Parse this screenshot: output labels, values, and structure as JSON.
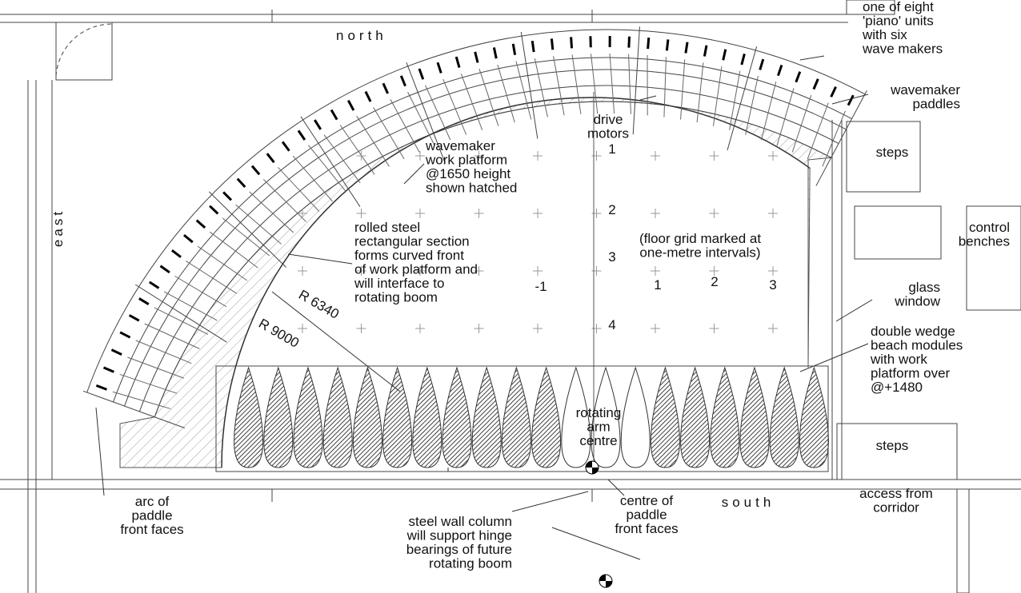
{
  "labels": [
    {
      "lines": [
        "north"
      ]
    },
    {
      "lines": [
        "east"
      ]
    },
    {
      "lines": [
        "south"
      ]
    },
    {
      "lines": [
        "one of eight",
        "'piano' units",
        "with six",
        "wave makers"
      ]
    },
    {
      "lines": [
        "wavemaker",
        "paddles"
      ]
    },
    {
      "lines": [
        "drive",
        "motors"
      ]
    },
    {
      "lines": [
        "steps"
      ]
    },
    {
      "lines": [
        "wavemaker",
        "work platform",
        "@1650 height",
        "shown hatched"
      ]
    },
    {
      "lines": [
        "control",
        "benches"
      ]
    },
    {
      "lines": [
        "rolled steel",
        "rectangular section",
        "forms curved front",
        "of work platform and",
        "will interface to",
        "rotating boom"
      ]
    },
    {
      "lines": [
        "(floor grid marked at",
        "one-metre intervals)"
      ]
    },
    {
      "lines": [
        "glass",
        "window"
      ]
    },
    {
      "lines": [
        "double wedge",
        "beach modules",
        "with work",
        "platform over",
        "@+1480"
      ]
    },
    {
      "lines": [
        "R 6340"
      ]
    },
    {
      "lines": [
        "R 9000"
      ]
    },
    {
      "lines": [
        "rotating",
        "arm",
        "centre"
      ]
    },
    {
      "lines": [
        "arc of",
        "paddle",
        "front faces"
      ]
    },
    {
      "lines": [
        "steel wall column",
        "will support hinge",
        "bearings of future",
        "rotating boom"
      ]
    },
    {
      "lines": [
        "centre of",
        "paddle",
        "front faces"
      ]
    },
    {
      "lines": [
        "access from",
        "corridor"
      ]
    },
    {
      "lines": [
        "steps"
      ]
    }
  ],
  "grid": {
    "rows": [
      "1",
      "2",
      "3",
      "4"
    ],
    "columns": [
      "-1",
      "1",
      "2",
      "3"
    ]
  }
}
